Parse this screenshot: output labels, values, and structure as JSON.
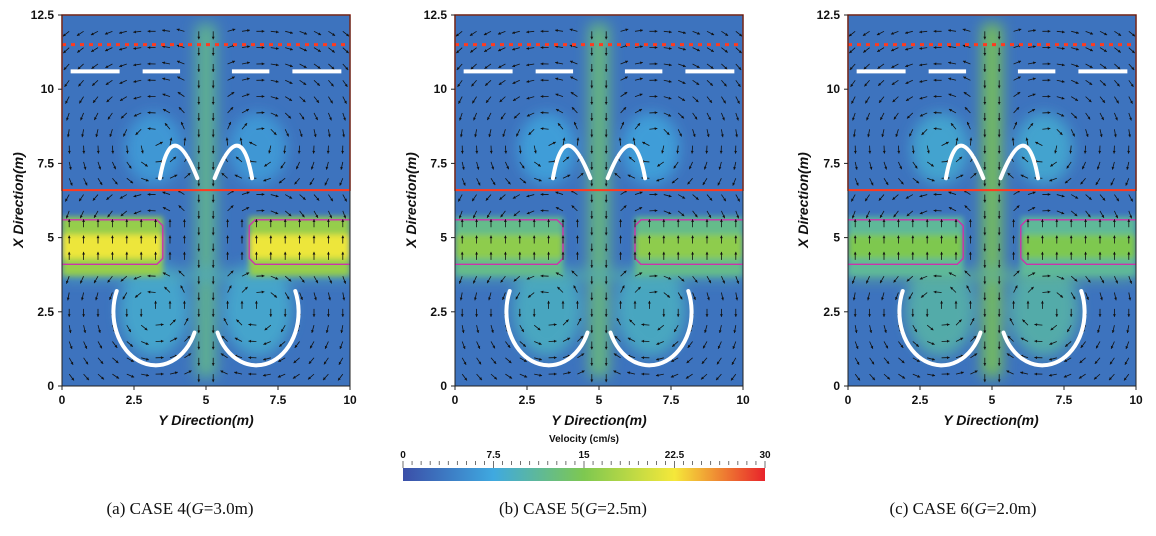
{
  "colorbar": {
    "title": "Velocity (cm/s)",
    "ticks": [
      "0",
      "7.5",
      "15",
      "22.5",
      "30"
    ],
    "range": [
      0,
      30
    ],
    "colors": [
      "#3b4fa8",
      "#3fa9e0",
      "#7ec850",
      "#f5e83a",
      "#e8232b"
    ]
  },
  "colors": {
    "weir_line": "#ff3b1f",
    "zone_dotted": "#ff3b1f",
    "opening_outline": "#cc33aa",
    "arrow_fill": "#ffffff",
    "vector": "#111111"
  },
  "chart_data": [
    {
      "type": "heatmap",
      "subtype": "velocity-vector-field",
      "caption_prefix": "(a) CASE 4(",
      "caption_var": "G",
      "caption_value": "=3.0m)",
      "xlabel": "Y Direction(m)",
      "ylabel": "X Direction(m)",
      "xlim": [
        0,
        10
      ],
      "ylim": [
        0,
        12.5
      ],
      "xticks": [
        "0",
        "2.5",
        "5",
        "7.5",
        "10"
      ],
      "yticks": [
        "0",
        "2.5",
        "5",
        "7.5",
        "10",
        "12.5"
      ],
      "gap_width_m": 3.0,
      "baffle_band_m": [
        3.7,
        5.7
      ],
      "weir_line_x_m": 6.6,
      "dotted_line_x_m": 11.5,
      "inflow_jet_speed_cm_s": 12,
      "baffle_speed_cm_s": 22,
      "background_speed_cm_s": 3
    },
    {
      "type": "heatmap",
      "subtype": "velocity-vector-field",
      "caption_prefix": "(b) CASE 5(",
      "caption_var": "G",
      "caption_value": "=2.5m)",
      "xlabel": "Y Direction(m)",
      "ylabel": "X Direction(m)",
      "xlim": [
        0,
        10
      ],
      "ylim": [
        0,
        12.5
      ],
      "xticks": [
        "0",
        "2.5",
        "5",
        "7.5",
        "10"
      ],
      "yticks": [
        "0",
        "2.5",
        "5",
        "7.5",
        "10",
        "12.5"
      ],
      "gap_width_m": 2.5,
      "baffle_band_m": [
        3.7,
        5.7
      ],
      "weir_line_x_m": 6.6,
      "dotted_line_x_m": 11.5,
      "inflow_jet_speed_cm_s": 13,
      "baffle_speed_cm_s": 16,
      "background_speed_cm_s": 3
    },
    {
      "type": "heatmap",
      "subtype": "velocity-vector-field",
      "caption_prefix": "(c) CASE 6(",
      "caption_var": "G",
      "caption_value": "=2.0m)",
      "xlabel": "Y Direction(m)",
      "ylabel": "X Direction(m)",
      "xlim": [
        0,
        10
      ],
      "ylim": [
        0,
        12.5
      ],
      "xticks": [
        "0",
        "2.5",
        "5",
        "7.5",
        "10"
      ],
      "yticks": [
        "0",
        "2.5",
        "5",
        "7.5",
        "10",
        "12.5"
      ],
      "gap_width_m": 2.0,
      "baffle_band_m": [
        3.7,
        5.7
      ],
      "weir_line_x_m": 6.6,
      "dotted_line_x_m": 11.5,
      "inflow_jet_speed_cm_s": 15,
      "baffle_speed_cm_s": 15,
      "background_speed_cm_s": 3
    }
  ]
}
